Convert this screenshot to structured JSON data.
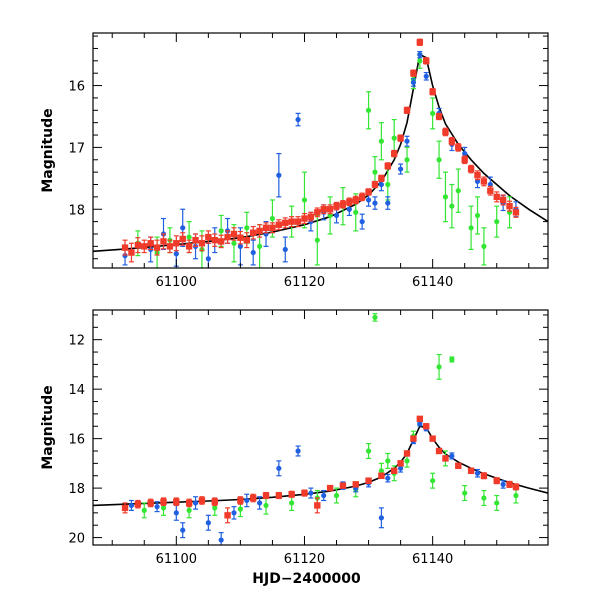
{
  "colors": {
    "blue": "#1f5fe0",
    "green": "#33e633",
    "red": "#f03a2a",
    "model": "#000000"
  },
  "chart_data": [
    {
      "type": "scatter",
      "panel": "top",
      "title": "",
      "xlabel": "",
      "ylabel": "Magnitude",
      "xlim": [
        61087,
        61158
      ],
      "ylim": [
        18.95,
        15.15
      ],
      "yinverted": true,
      "xticks": [
        61100,
        61120,
        61140
      ],
      "xtick_labels": [
        "61100",
        "61120",
        "61140"
      ],
      "yticks": [
        16,
        17,
        18
      ],
      "ytick_labels": [
        "16",
        "17",
        "18"
      ],
      "model_curve": {
        "name": "model",
        "x": [
          61087,
          61095,
          61100,
          61105,
          61110,
          61115,
          61120,
          61124,
          61128,
          61130,
          61132,
          61134,
          61135,
          61136,
          61137,
          61138,
          61139,
          61140,
          61141,
          61142,
          61144,
          61146,
          61148,
          61150,
          61152,
          61155,
          61158
        ],
        "y": [
          18.68,
          18.62,
          18.57,
          18.52,
          18.46,
          18.37,
          18.25,
          18.12,
          17.92,
          17.77,
          17.55,
          17.2,
          16.95,
          16.6,
          16.05,
          15.5,
          15.55,
          16.0,
          16.35,
          16.62,
          16.95,
          17.2,
          17.42,
          17.6,
          17.78,
          18.0,
          18.2
        ]
      },
      "series": [
        {
          "name": "red",
          "x": [
            61092,
            61093,
            61094,
            61095,
            61096,
            61097,
            61098,
            61099,
            61100,
            61101,
            61102,
            61103,
            61104,
            61105,
            61106,
            61107,
            61108,
            61109,
            61110,
            61111,
            61112,
            61113,
            61114,
            61115,
            61116,
            61117,
            61118,
            61119,
            61120,
            61121,
            61122,
            61123,
            61124,
            61125,
            61126,
            61127,
            61128,
            61129,
            61130,
            61131,
            61132,
            61133,
            61134,
            61135,
            61136,
            61137,
            61138,
            61139,
            61140,
            61141,
            61142,
            61143,
            61144,
            61145,
            61146,
            61147,
            61148,
            61149,
            61150,
            61151,
            61152,
            61153
          ],
          "y": [
            18.62,
            18.7,
            18.58,
            18.6,
            18.55,
            18.62,
            18.52,
            18.6,
            18.55,
            18.48,
            18.6,
            18.5,
            18.55,
            18.45,
            18.5,
            18.52,
            18.45,
            18.4,
            18.46,
            18.5,
            18.38,
            18.35,
            18.3,
            18.3,
            18.25,
            18.22,
            18.2,
            18.2,
            18.15,
            18.12,
            18.05,
            18.0,
            18.0,
            17.95,
            17.92,
            17.88,
            17.85,
            17.8,
            17.72,
            17.6,
            17.5,
            17.3,
            17.1,
            16.85,
            16.4,
            15.8,
            15.3,
            15.6,
            16.1,
            16.5,
            16.75,
            16.9,
            17.0,
            17.2,
            17.35,
            17.45,
            17.55,
            17.7,
            17.8,
            17.85,
            17.95,
            18.05
          ],
          "err": [
            0.12,
            0.15,
            0.12,
            0.1,
            0.1,
            0.12,
            0.12,
            0.1,
            0.12,
            0.1,
            0.1,
            0.1,
            0.12,
            0.1,
            0.1,
            0.1,
            0.1,
            0.1,
            0.1,
            0.12,
            0.1,
            0.1,
            0.08,
            0.08,
            0.08,
            0.08,
            0.08,
            0.08,
            0.08,
            0.07,
            0.07,
            0.07,
            0.07,
            0.06,
            0.06,
            0.06,
            0.06,
            0.06,
            0.05,
            0.05,
            0.05,
            0.05,
            0.05,
            0.05,
            0.05,
            0.05,
            0.05,
            0.05,
            0.05,
            0.05,
            0.06,
            0.06,
            0.06,
            0.06,
            0.06,
            0.07,
            0.07,
            0.07,
            0.08,
            0.08,
            0.08,
            0.08
          ]
        },
        {
          "name": "blue",
          "x": [
            61092,
            61096,
            61098,
            61100,
            61101,
            61103,
            61105,
            61106,
            61108,
            61110,
            61112,
            61114,
            61116,
            61117,
            61119,
            61121,
            61123,
            61125,
            61127,
            61129,
            61130,
            61131,
            61132,
            61133,
            61135,
            61136,
            61137,
            61138,
            61139,
            61141,
            61143,
            61145,
            61147,
            61149,
            61151,
            61153
          ],
          "y": [
            18.75,
            18.65,
            18.4,
            18.72,
            18.3,
            18.6,
            18.8,
            18.5,
            18.35,
            18.6,
            18.7,
            18.4,
            17.45,
            18.65,
            16.55,
            18.2,
            18.05,
            18.1,
            18.0,
            18.2,
            17.85,
            17.9,
            17.6,
            17.9,
            17.35,
            16.9,
            15.95,
            15.5,
            15.85,
            16.45,
            16.95,
            17.1,
            17.55,
            17.6,
            17.9,
            18.0
          ],
          "err": [
            0.15,
            0.2,
            0.25,
            0.2,
            0.3,
            0.2,
            0.25,
            0.2,
            0.2,
            0.3,
            0.2,
            0.2,
            0.35,
            0.2,
            0.1,
            0.15,
            0.12,
            0.12,
            0.1,
            0.12,
            0.1,
            0.1,
            0.1,
            0.1,
            0.08,
            0.08,
            0.06,
            0.05,
            0.06,
            0.08,
            0.1,
            0.1,
            0.1,
            0.12,
            0.12,
            0.12
          ]
        },
        {
          "name": "green",
          "x": [
            61094,
            61097,
            61099,
            61102,
            61104,
            61107,
            61109,
            61111,
            61113,
            61115,
            61118,
            61120,
            61122,
            61124,
            61126,
            61128,
            61130,
            61131,
            61132,
            61133,
            61134,
            61136,
            61137,
            61138,
            61140,
            61141,
            61142,
            61143,
            61144,
            61146,
            61147,
            61148,
            61150,
            61152
          ],
          "y": [
            18.55,
            18.7,
            18.5,
            18.45,
            18.65,
            18.35,
            18.55,
            18.3,
            18.6,
            18.15,
            18.2,
            17.85,
            18.5,
            18.1,
            17.95,
            18.05,
            16.4,
            17.4,
            16.9,
            17.6,
            16.85,
            17.2,
            15.9,
            15.6,
            16.45,
            17.2,
            17.8,
            17.95,
            17.7,
            18.3,
            18.1,
            18.6,
            18.2,
            18.05
          ],
          "err": [
            0.2,
            0.25,
            0.2,
            0.25,
            0.3,
            0.25,
            0.3,
            0.25,
            0.35,
            0.3,
            0.25,
            0.45,
            0.4,
            0.3,
            0.3,
            0.3,
            0.3,
            0.25,
            0.3,
            0.25,
            0.3,
            0.2,
            0.15,
            0.12,
            0.25,
            0.3,
            0.4,
            0.35,
            0.35,
            0.35,
            0.3,
            0.3,
            0.25,
            0.25
          ]
        }
      ]
    },
    {
      "type": "scatter",
      "panel": "bottom",
      "title": "",
      "xlabel": "HJD−2400000",
      "ylabel": "Magnitude",
      "xlim": [
        61087,
        61158
      ],
      "ylim": [
        20.3,
        10.8
      ],
      "yinverted": true,
      "xticks": [
        61100,
        61120,
        61140
      ],
      "xtick_labels": [
        "61100",
        "61120",
        "61140"
      ],
      "yticks": [
        12,
        14,
        16,
        18,
        20
      ],
      "ytick_labels": [
        "12",
        "14",
        "16",
        "18",
        "20"
      ],
      "model_curve": {
        "name": "model",
        "x": [
          61087,
          61095,
          61100,
          61105,
          61110,
          61115,
          61120,
          61124,
          61128,
          61130,
          61132,
          61134,
          61135,
          61136,
          61137,
          61138,
          61139,
          61140,
          61141,
          61142,
          61144,
          61146,
          61148,
          61150,
          61152,
          61155,
          61158
        ],
        "y": [
          18.7,
          18.62,
          18.57,
          18.52,
          18.46,
          18.37,
          18.25,
          18.12,
          17.92,
          17.77,
          17.55,
          17.2,
          16.95,
          16.6,
          16.05,
          15.5,
          15.55,
          16.0,
          16.35,
          16.62,
          16.95,
          17.2,
          17.42,
          17.6,
          17.78,
          18.0,
          18.2
        ]
      },
      "series": [
        {
          "name": "red",
          "x": [
            61092,
            61094,
            61096,
            61098,
            61100,
            61102,
            61104,
            61106,
            61108,
            61110,
            61112,
            61114,
            61116,
            61118,
            61120,
            61122,
            61124,
            61126,
            61128,
            61130,
            61132,
            61134,
            61135,
            61136,
            61137,
            61138,
            61139,
            61140,
            61141,
            61142,
            61144,
            61146,
            61148,
            61150,
            61152,
            61153
          ],
          "y": [
            18.8,
            18.65,
            18.6,
            18.55,
            18.55,
            18.6,
            18.5,
            18.55,
            19.1,
            18.5,
            18.4,
            18.3,
            18.3,
            18.25,
            18.2,
            18.7,
            18.0,
            17.9,
            17.85,
            17.7,
            17.5,
            17.3,
            17.0,
            16.6,
            16.0,
            15.2,
            15.5,
            16.0,
            16.5,
            16.8,
            17.1,
            17.3,
            17.5,
            17.7,
            17.85,
            17.95
          ],
          "err": [
            0.2,
            0.15,
            0.15,
            0.15,
            0.15,
            0.15,
            0.15,
            0.15,
            0.3,
            0.15,
            0.15,
            0.12,
            0.12,
            0.12,
            0.12,
            0.3,
            0.1,
            0.1,
            0.1,
            0.1,
            0.1,
            0.1,
            0.1,
            0.1,
            0.08,
            0.08,
            0.08,
            0.08,
            0.08,
            0.1,
            0.1,
            0.1,
            0.12,
            0.12,
            0.12,
            0.12
          ]
        },
        {
          "name": "blue",
          "x": [
            61093,
            61097,
            61100,
            61101,
            61103,
            61105,
            61107,
            61109,
            61111,
            61113,
            61116,
            61119,
            61121,
            61123,
            61126,
            61128,
            61130,
            61132,
            61133,
            61135,
            61137,
            61138,
            61139,
            61143,
            61147,
            61151
          ],
          "y": [
            18.7,
            18.75,
            19.0,
            19.7,
            18.6,
            19.4,
            20.1,
            19.0,
            18.5,
            18.6,
            17.2,
            16.5,
            18.2,
            18.3,
            17.9,
            18.0,
            17.8,
            19.2,
            17.6,
            17.2,
            16.1,
            15.4,
            15.6,
            16.7,
            17.4,
            17.85
          ],
          "err": [
            0.2,
            0.2,
            0.3,
            0.3,
            0.25,
            0.3,
            0.3,
            0.25,
            0.25,
            0.25,
            0.3,
            0.2,
            0.2,
            0.2,
            0.15,
            0.15,
            0.15,
            0.4,
            0.15,
            0.15,
            0.1,
            0.08,
            0.08,
            0.12,
            0.15,
            0.15
          ]
        },
        {
          "name": "green",
          "x": [
            61095,
            61098,
            61102,
            61106,
            61110,
            61114,
            61118,
            61122,
            61125,
            61128,
            61130,
            61131,
            61132,
            61133,
            61134,
            61136,
            61137,
            61138,
            61140,
            61141,
            61142,
            61143,
            61145,
            61148,
            61150,
            61153
          ],
          "y": [
            18.9,
            18.8,
            18.9,
            18.8,
            18.85,
            18.7,
            18.6,
            18.4,
            18.3,
            18.05,
            16.5,
            11.1,
            17.3,
            16.9,
            17.4,
            16.9,
            15.9,
            15.3,
            17.7,
            13.1,
            16.8,
            12.8,
            18.2,
            18.4,
            18.6,
            18.3
          ],
          "err": [
            0.3,
            0.3,
            0.3,
            0.3,
            0.3,
            0.35,
            0.3,
            0.3,
            0.3,
            0.3,
            0.3,
            0.15,
            0.3,
            0.3,
            0.3,
            0.25,
            0.2,
            0.15,
            0.3,
            0.5,
            0.3,
            0.1,
            0.3,
            0.3,
            0.3,
            0.3
          ]
        }
      ]
    }
  ]
}
